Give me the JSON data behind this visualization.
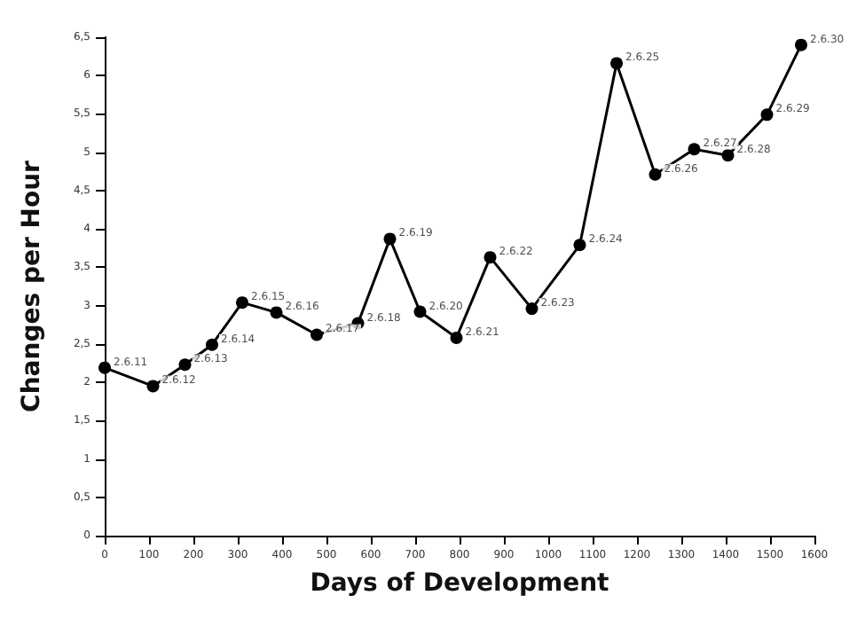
{
  "chart_data": {
    "type": "line",
    "xlabel": "Days of Development",
    "ylabel": "Changes per Hour",
    "x": [
      0,
      109,
      181,
      242,
      310,
      387,
      478,
      571,
      643,
      711,
      793,
      869,
      963,
      1071,
      1154,
      1241,
      1329,
      1405,
      1493,
      1570
    ],
    "series": [
      {
        "color": "#000000",
        "values": [
          2.19,
          1.95,
          2.23,
          2.49,
          3.04,
          2.91,
          2.62,
          2.77,
          3.87,
          2.92,
          2.58,
          3.63,
          2.96,
          3.79,
          6.16,
          4.71,
          5.04,
          4.96,
          5.49,
          6.4
        ]
      }
    ],
    "xlim": [
      0,
      1600
    ],
    "xticks": [
      0,
      100,
      200,
      300,
      400,
      500,
      600,
      700,
      800,
      900,
      1000,
      1100,
      1200,
      1300,
      1400,
      1500,
      1600
    ],
    "ylim": [
      0,
      6.5
    ],
    "yticks": [
      0,
      {
        "value": 0.5,
        "label": "0,5"
      },
      1,
      {
        "value": 1.5,
        "label": "1,5"
      },
      2,
      {
        "value": 2.5,
        "label": "2,5"
      },
      3,
      {
        "value": 3.5,
        "label": "3,5"
      },
      4,
      {
        "value": 4.5,
        "label": "4,5"
      },
      5,
      {
        "value": 5.5,
        "label": "5,5"
      },
      6,
      {
        "value": 6.5,
        "label": "6,5"
      }
    ],
    "grid": false,
    "marker": "circle",
    "line_style": "solid",
    "annotations": [
      {
        "text": "2.6.11",
        "x": 0,
        "y": 2.19
      },
      {
        "text": "2.6.12",
        "x": 109,
        "y": 1.95
      },
      {
        "text": "2.6.13",
        "x": 181,
        "y": 2.23
      },
      {
        "text": "2.6.14",
        "x": 242,
        "y": 2.49
      },
      {
        "text": "2.6.15",
        "x": 310,
        "y": 3.04
      },
      {
        "text": "2.6.16",
        "x": 387,
        "y": 2.91
      },
      {
        "text": "2.6.17",
        "x": 478,
        "y": 2.62
      },
      {
        "text": "2.6.18",
        "x": 571,
        "y": 2.77
      },
      {
        "text": "2.6.19",
        "x": 643,
        "y": 3.87
      },
      {
        "text": "2.6.20",
        "x": 711,
        "y": 2.92
      },
      {
        "text": "2.6.21",
        "x": 793,
        "y": 2.58
      },
      {
        "text": "2.6.22",
        "x": 869,
        "y": 3.63
      },
      {
        "text": "2.6.23",
        "x": 963,
        "y": 2.96
      },
      {
        "text": "2.6.24",
        "x": 1071,
        "y": 3.79
      },
      {
        "text": "2.6.25",
        "x": 1154,
        "y": 6.16
      },
      {
        "text": "2.6.26",
        "x": 1241,
        "y": 4.71
      },
      {
        "text": "2.6.27",
        "x": 1329,
        "y": 5.04
      },
      {
        "text": "2.6.28",
        "x": 1405,
        "y": 4.96
      },
      {
        "text": "2.6.29",
        "x": 1493,
        "y": 5.49
      },
      {
        "text": "2.6.30",
        "x": 1570,
        "y": 6.4
      }
    ]
  }
}
